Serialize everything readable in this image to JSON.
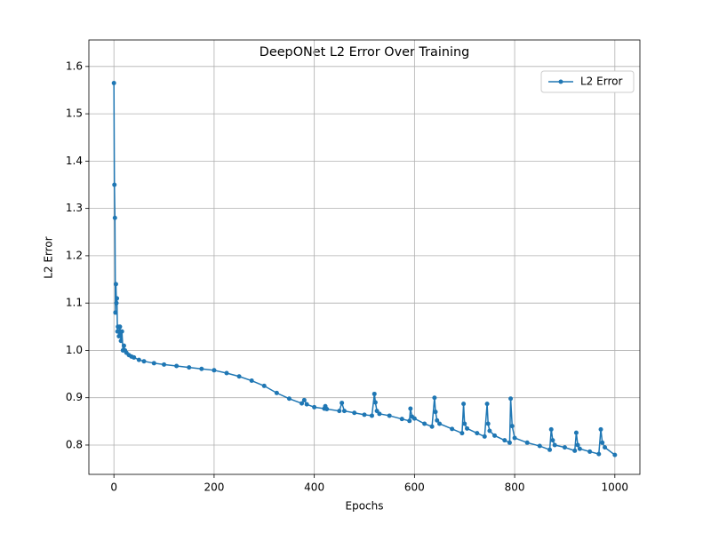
{
  "chart_data": {
    "type": "line",
    "title": "DeepONet L2 Error Over Training",
    "x_label": "Epochs",
    "y_label": "L2 Error",
    "x": [
      0,
      1,
      2,
      3,
      4,
      5,
      6,
      7,
      8,
      10,
      12,
      14,
      16,
      18,
      20,
      22,
      25,
      30,
      35,
      40,
      50,
      60,
      80,
      100,
      125,
      150,
      175,
      200,
      225,
      250,
      275,
      300,
      325,
      350,
      375,
      380,
      385,
      400,
      420,
      422,
      425,
      450,
      455,
      460,
      480,
      500,
      515,
      520,
      522,
      525,
      530,
      550,
      575,
      590,
      592,
      595,
      600,
      620,
      635,
      640,
      642,
      645,
      650,
      675,
      695,
      698,
      700,
      705,
      725,
      740,
      745,
      747,
      750,
      760,
      780,
      790,
      792,
      795,
      800,
      825,
      850,
      870,
      873,
      876,
      880,
      900,
      920,
      923,
      926,
      930,
      950,
      968,
      972,
      975,
      980,
      1000
    ],
    "series": [
      {
        "name": "L2 Error",
        "color": "#1f77b4",
        "values": [
          1.565,
          1.35,
          1.28,
          1.08,
          1.14,
          1.1,
          1.11,
          1.04,
          1.05,
          1.03,
          1.05,
          1.02,
          1.04,
          1.0,
          1.01,
          1.0,
          0.995,
          0.99,
          0.987,
          0.985,
          0.98,
          0.977,
          0.973,
          0.97,
          0.967,
          0.964,
          0.961,
          0.958,
          0.952,
          0.945,
          0.936,
          0.925,
          0.91,
          0.898,
          0.888,
          0.895,
          0.886,
          0.88,
          0.877,
          0.882,
          0.876,
          0.872,
          0.889,
          0.872,
          0.868,
          0.864,
          0.862,
          0.908,
          0.89,
          0.872,
          0.866,
          0.862,
          0.855,
          0.851,
          0.877,
          0.86,
          0.856,
          0.845,
          0.839,
          0.9,
          0.87,
          0.852,
          0.845,
          0.834,
          0.825,
          0.887,
          0.845,
          0.835,
          0.825,
          0.818,
          0.887,
          0.845,
          0.83,
          0.82,
          0.81,
          0.805,
          0.898,
          0.84,
          0.815,
          0.805,
          0.798,
          0.79,
          0.833,
          0.81,
          0.8,
          0.795,
          0.788,
          0.826,
          0.8,
          0.792,
          0.786,
          0.781,
          0.833,
          0.805,
          0.795,
          0.779
        ]
      }
    ],
    "xlim": [
      -50,
      1050
    ],
    "ylim": [
      0.738,
      1.656
    ],
    "xticks": [
      0,
      200,
      400,
      600,
      800,
      1000
    ],
    "yticks": [
      0.8,
      0.9,
      {
        "value": 1,
        "label": "1.0"
      },
      1.1,
      1.2,
      1.3,
      1.4,
      1.5,
      1.6
    ],
    "grid": true,
    "legend": "upper right"
  }
}
